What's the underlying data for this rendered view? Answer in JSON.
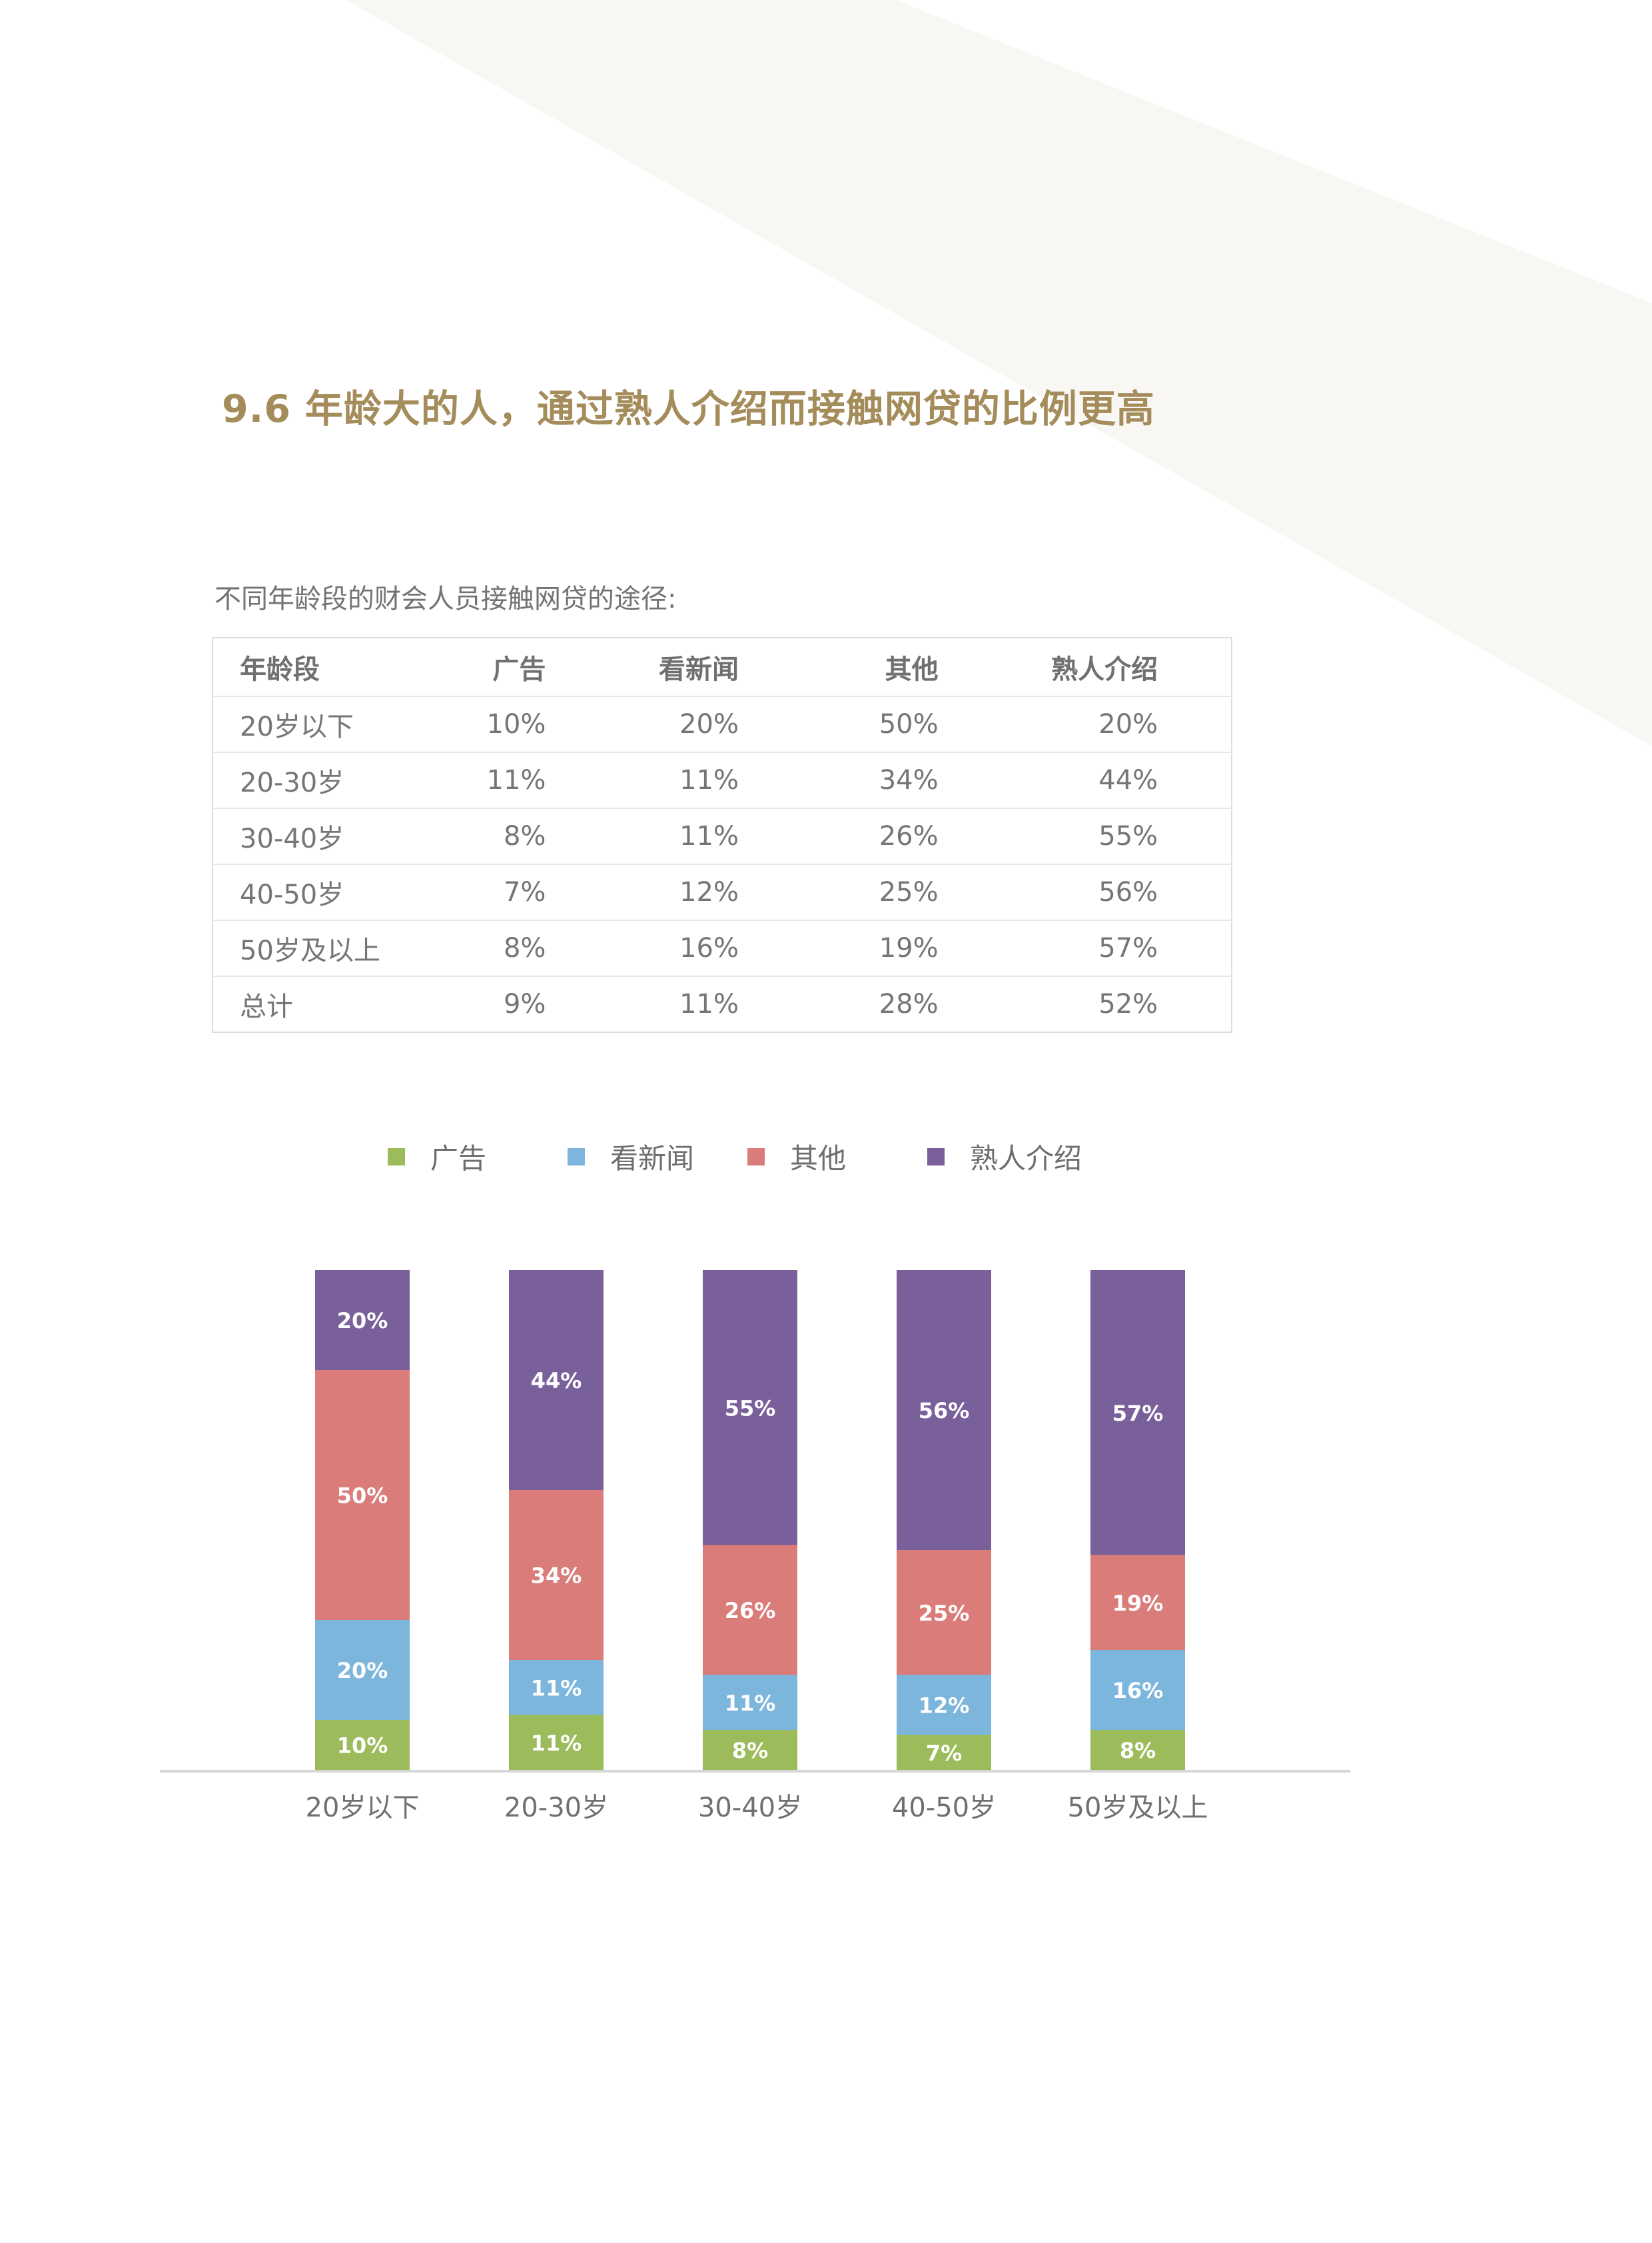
{
  "title": "9.6 年龄大的人，通过熟人介绍而接触网贷的比例更高",
  "table_caption": "不同年龄段的财会人员接触网贷的途径:",
  "table": {
    "headers": [
      "年龄段",
      "广告",
      "看新闻",
      "其他",
      "熟人介绍"
    ],
    "rows": [
      [
        "20岁以下",
        "10%",
        "20%",
        "50%",
        "20%"
      ],
      [
        "20-30岁",
        "11%",
        "11%",
        "34%",
        "44%"
      ],
      [
        "30-40岁",
        "8%",
        "11%",
        "26%",
        "55%"
      ],
      [
        "40-50岁",
        "7%",
        "12%",
        "25%",
        "56%"
      ],
      [
        "50岁及以上",
        "8%",
        "16%",
        "19%",
        "57%"
      ],
      [
        "总计",
        "9%",
        "11%",
        "28%",
        "52%"
      ]
    ]
  },
  "colors": {
    "title": "#a58c5b",
    "background_shape": "#f8f7f3",
    "series": [
      "#9cbb5a",
      "#7db6dd",
      "#d97c7a",
      "#7a609b"
    ]
  },
  "chart_data": {
    "type": "bar",
    "stacked": true,
    "categories": [
      "20岁以下",
      "20-30岁",
      "30-40岁",
      "40-50岁",
      "50岁及以上"
    ],
    "series": [
      {
        "name": "广告",
        "values": [
          10,
          11,
          8,
          7,
          8
        ],
        "labels": [
          "10%",
          "11%",
          "8%",
          "7%",
          "8%"
        ]
      },
      {
        "name": "看新闻",
        "values": [
          20,
          11,
          11,
          12,
          16
        ],
        "labels": [
          "20%",
          "11%",
          "11%",
          "12%",
          "16%"
        ]
      },
      {
        "name": "其他",
        "values": [
          50,
          34,
          26,
          25,
          19
        ],
        "labels": [
          "50%",
          "34%",
          "26%",
          "25%",
          "19%"
        ]
      },
      {
        "name": "熟人介绍",
        "values": [
          20,
          44,
          55,
          56,
          57
        ],
        "labels": [
          "20%",
          "44%",
          "55%",
          "56%",
          "57%"
        ]
      }
    ],
    "ylim": [
      0,
      100
    ],
    "grid": false,
    "legend": "top",
    "title": "",
    "xlabel": "",
    "ylabel": ""
  }
}
